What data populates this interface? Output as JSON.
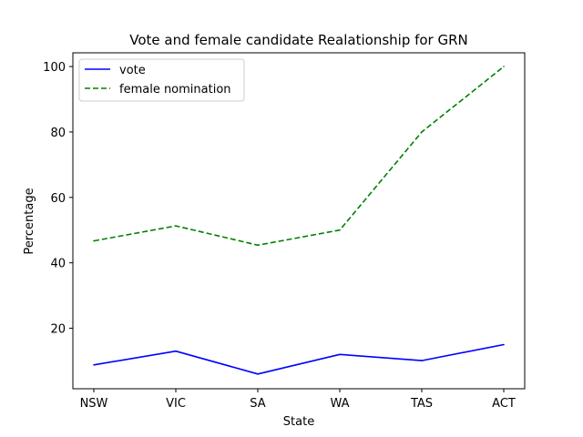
{
  "chart_data": {
    "type": "line",
    "title": "Vote and female candidate Realationship for GRN",
    "xlabel": "State",
    "ylabel": "Percentage",
    "categories": [
      "NSW",
      "VIC",
      "SA",
      "WA",
      "TAS",
      "ACT"
    ],
    "yticks": [
      20,
      40,
      60,
      80,
      100
    ],
    "ylim": [
      1.5,
      104.2
    ],
    "grid": false,
    "legend_position": "upper-left",
    "series": [
      {
        "name": "vote",
        "values": [
          8.8,
          13.0,
          6.0,
          12.0,
          10.1,
          15.0
        ],
        "color": "#0000ff",
        "style": "solid"
      },
      {
        "name": "female nomination",
        "values": [
          46.7,
          51.3,
          45.4,
          50.0,
          80.0,
          100.0
        ],
        "color": "#008000",
        "style": "dashed"
      }
    ]
  }
}
